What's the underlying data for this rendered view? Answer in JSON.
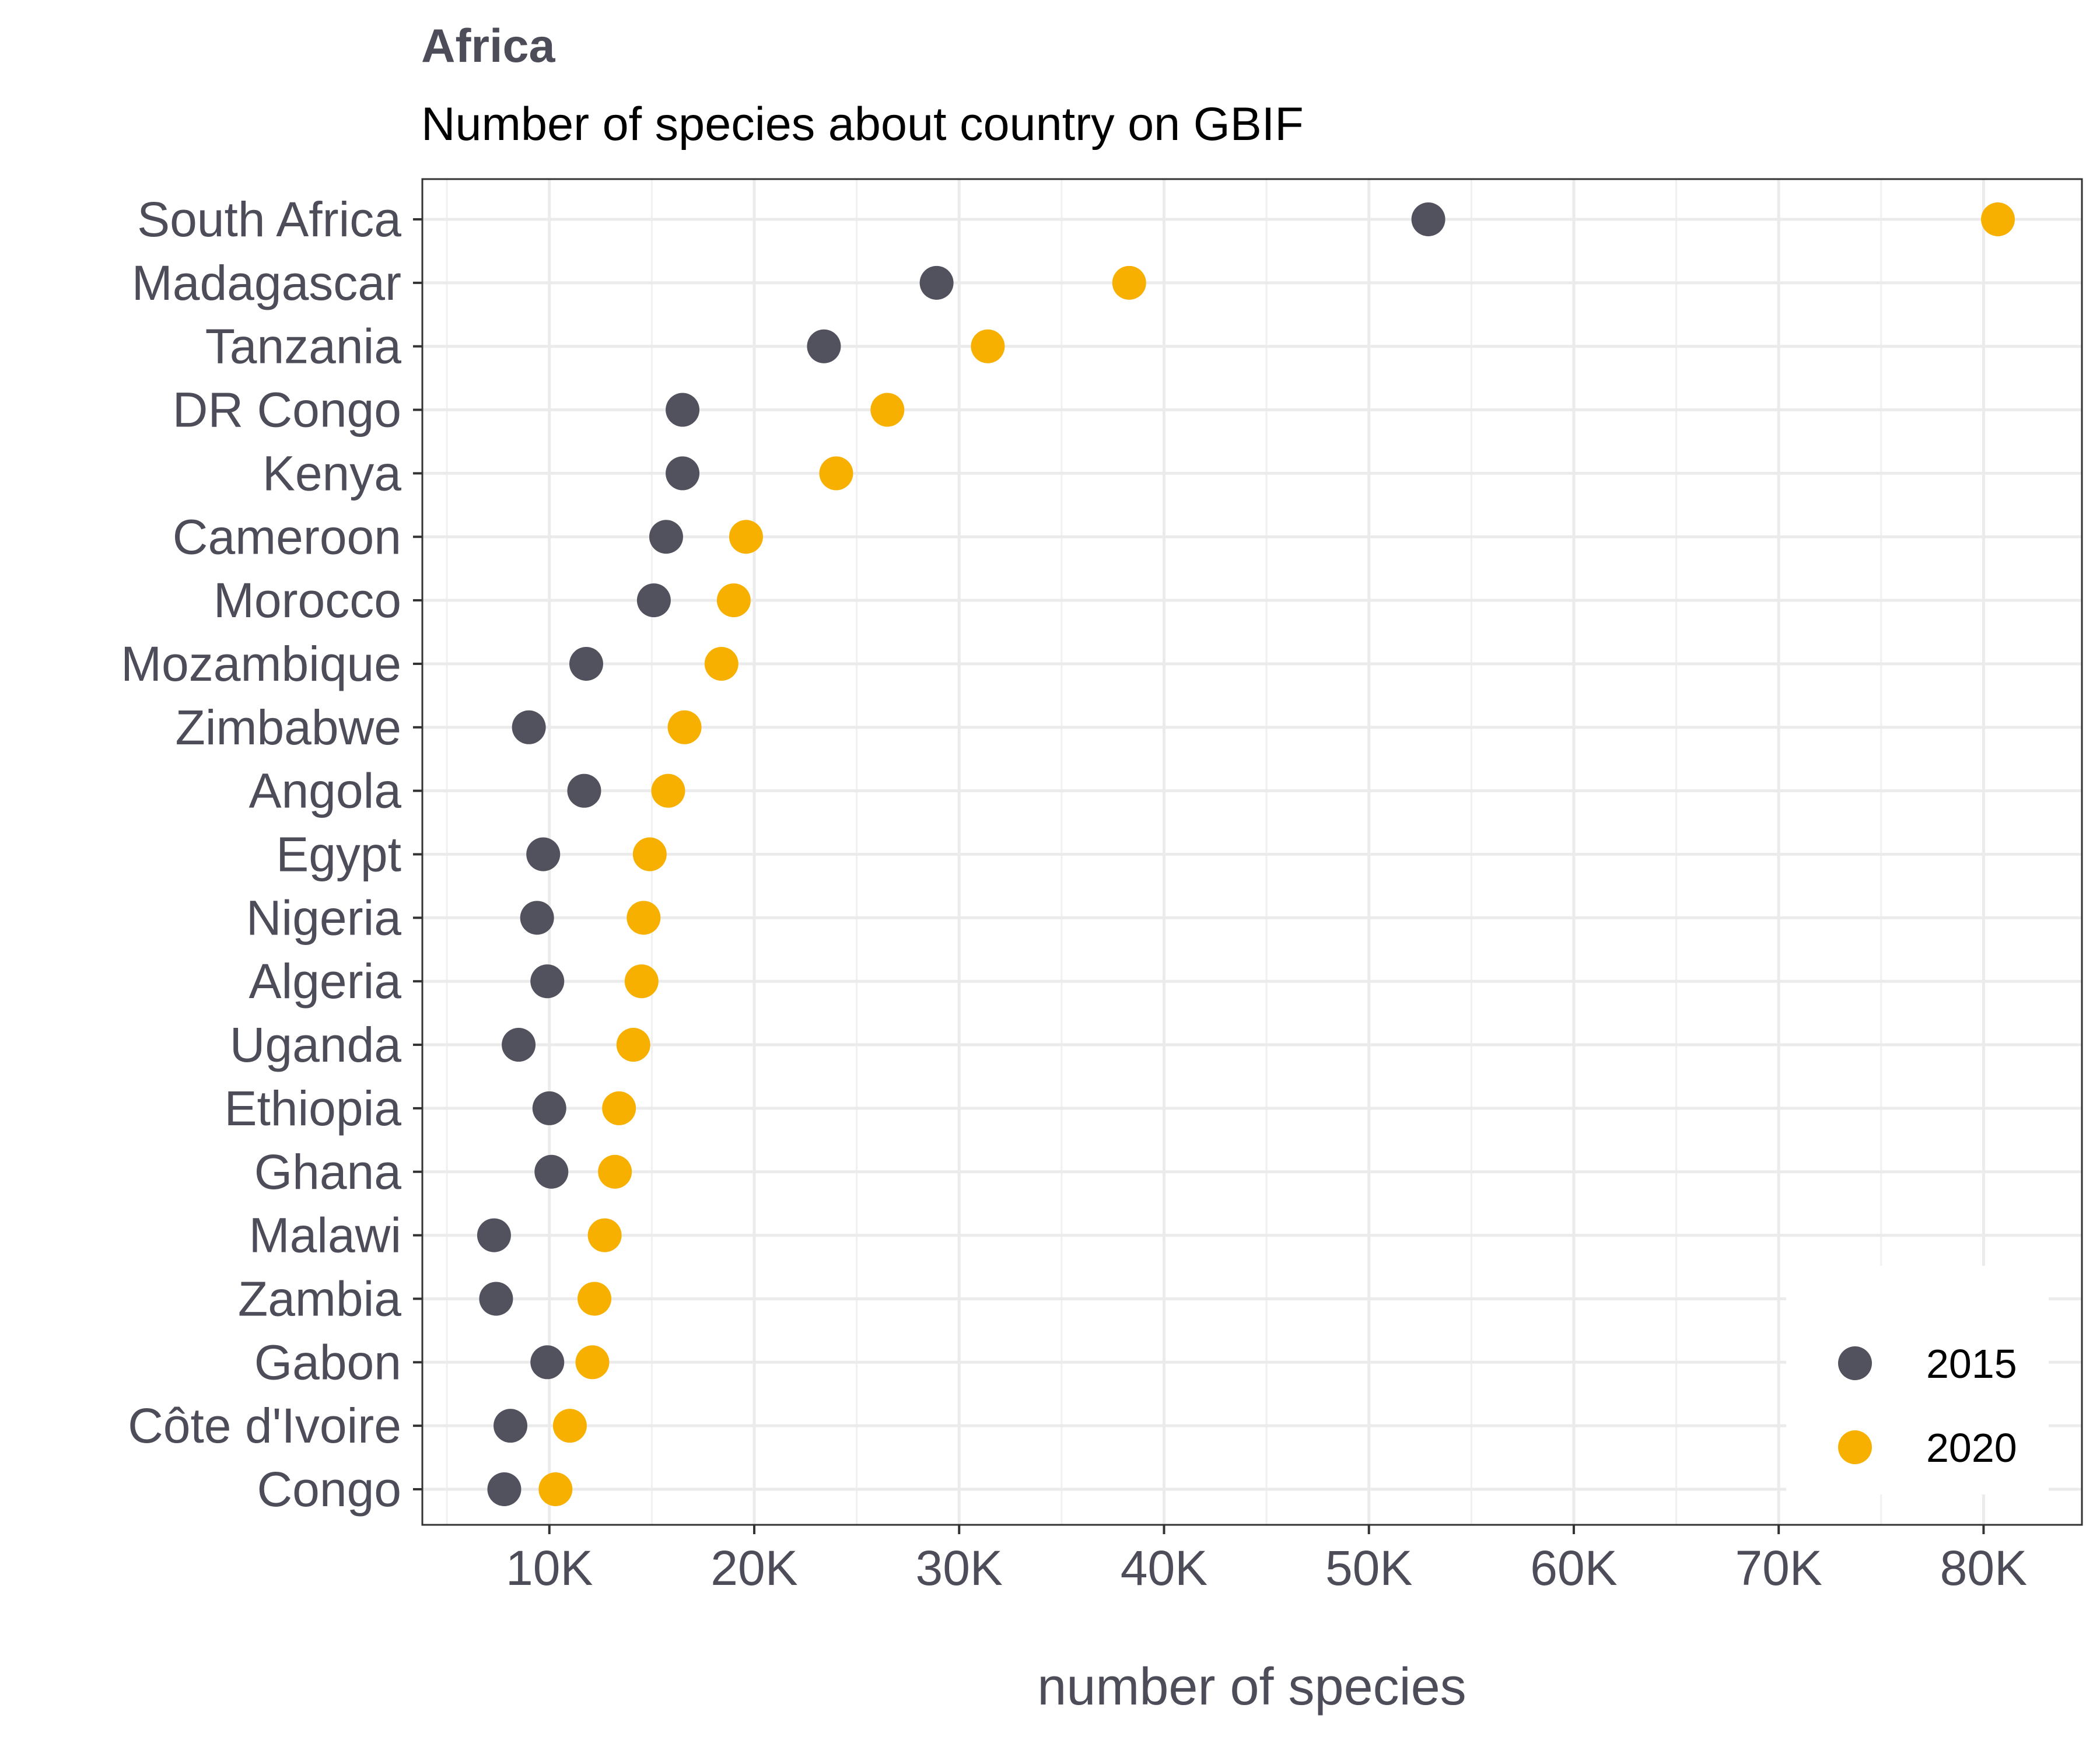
{
  "chart_data": {
    "type": "scatter",
    "title": "Africa",
    "subtitle": "Number of species about country on GBIF",
    "xlabel": "number of species",
    "ylabel": "",
    "xlim": [
      3800,
      84800
    ],
    "x_ticks": [
      10000,
      20000,
      30000,
      40000,
      50000,
      60000,
      70000,
      80000
    ],
    "x_tick_labels": [
      "10K",
      "20K",
      "30K",
      "40K",
      "50K",
      "60K",
      "70K",
      "80K"
    ],
    "grid": true,
    "legend_position": "bottom-right",
    "categories": [
      "South Africa",
      "Madagascar",
      "Tanzania",
      "DR Congo",
      "Kenya",
      "Cameroon",
      "Morocco",
      "Mozambique",
      "Zimbabwe",
      "Angola",
      "Egypt",
      "Nigeria",
      "Algeria",
      "Uganda",
      "Ethiopia",
      "Ghana",
      "Malawi",
      "Zambia",
      "Gabon",
      "Côte d'Ivoire",
      "Congo"
    ],
    "series": [
      {
        "name": "2015",
        "color": "#52525e",
        "values": [
          52900,
          28900,
          23400,
          16500,
          16500,
          15700,
          15100,
          11800,
          9000,
          11700,
          9700,
          9400,
          9900,
          8500,
          10000,
          10100,
          7300,
          7400,
          9900,
          8100,
          7800
        ]
      },
      {
        "name": "2020",
        "color": "#f8b000",
        "values": [
          80700,
          38300,
          31400,
          26500,
          24000,
          19600,
          19000,
          18400,
          16600,
          15800,
          14900,
          14600,
          14500,
          14100,
          13400,
          13200,
          12700,
          12200,
          12100,
          11000,
          10300
        ]
      }
    ]
  }
}
